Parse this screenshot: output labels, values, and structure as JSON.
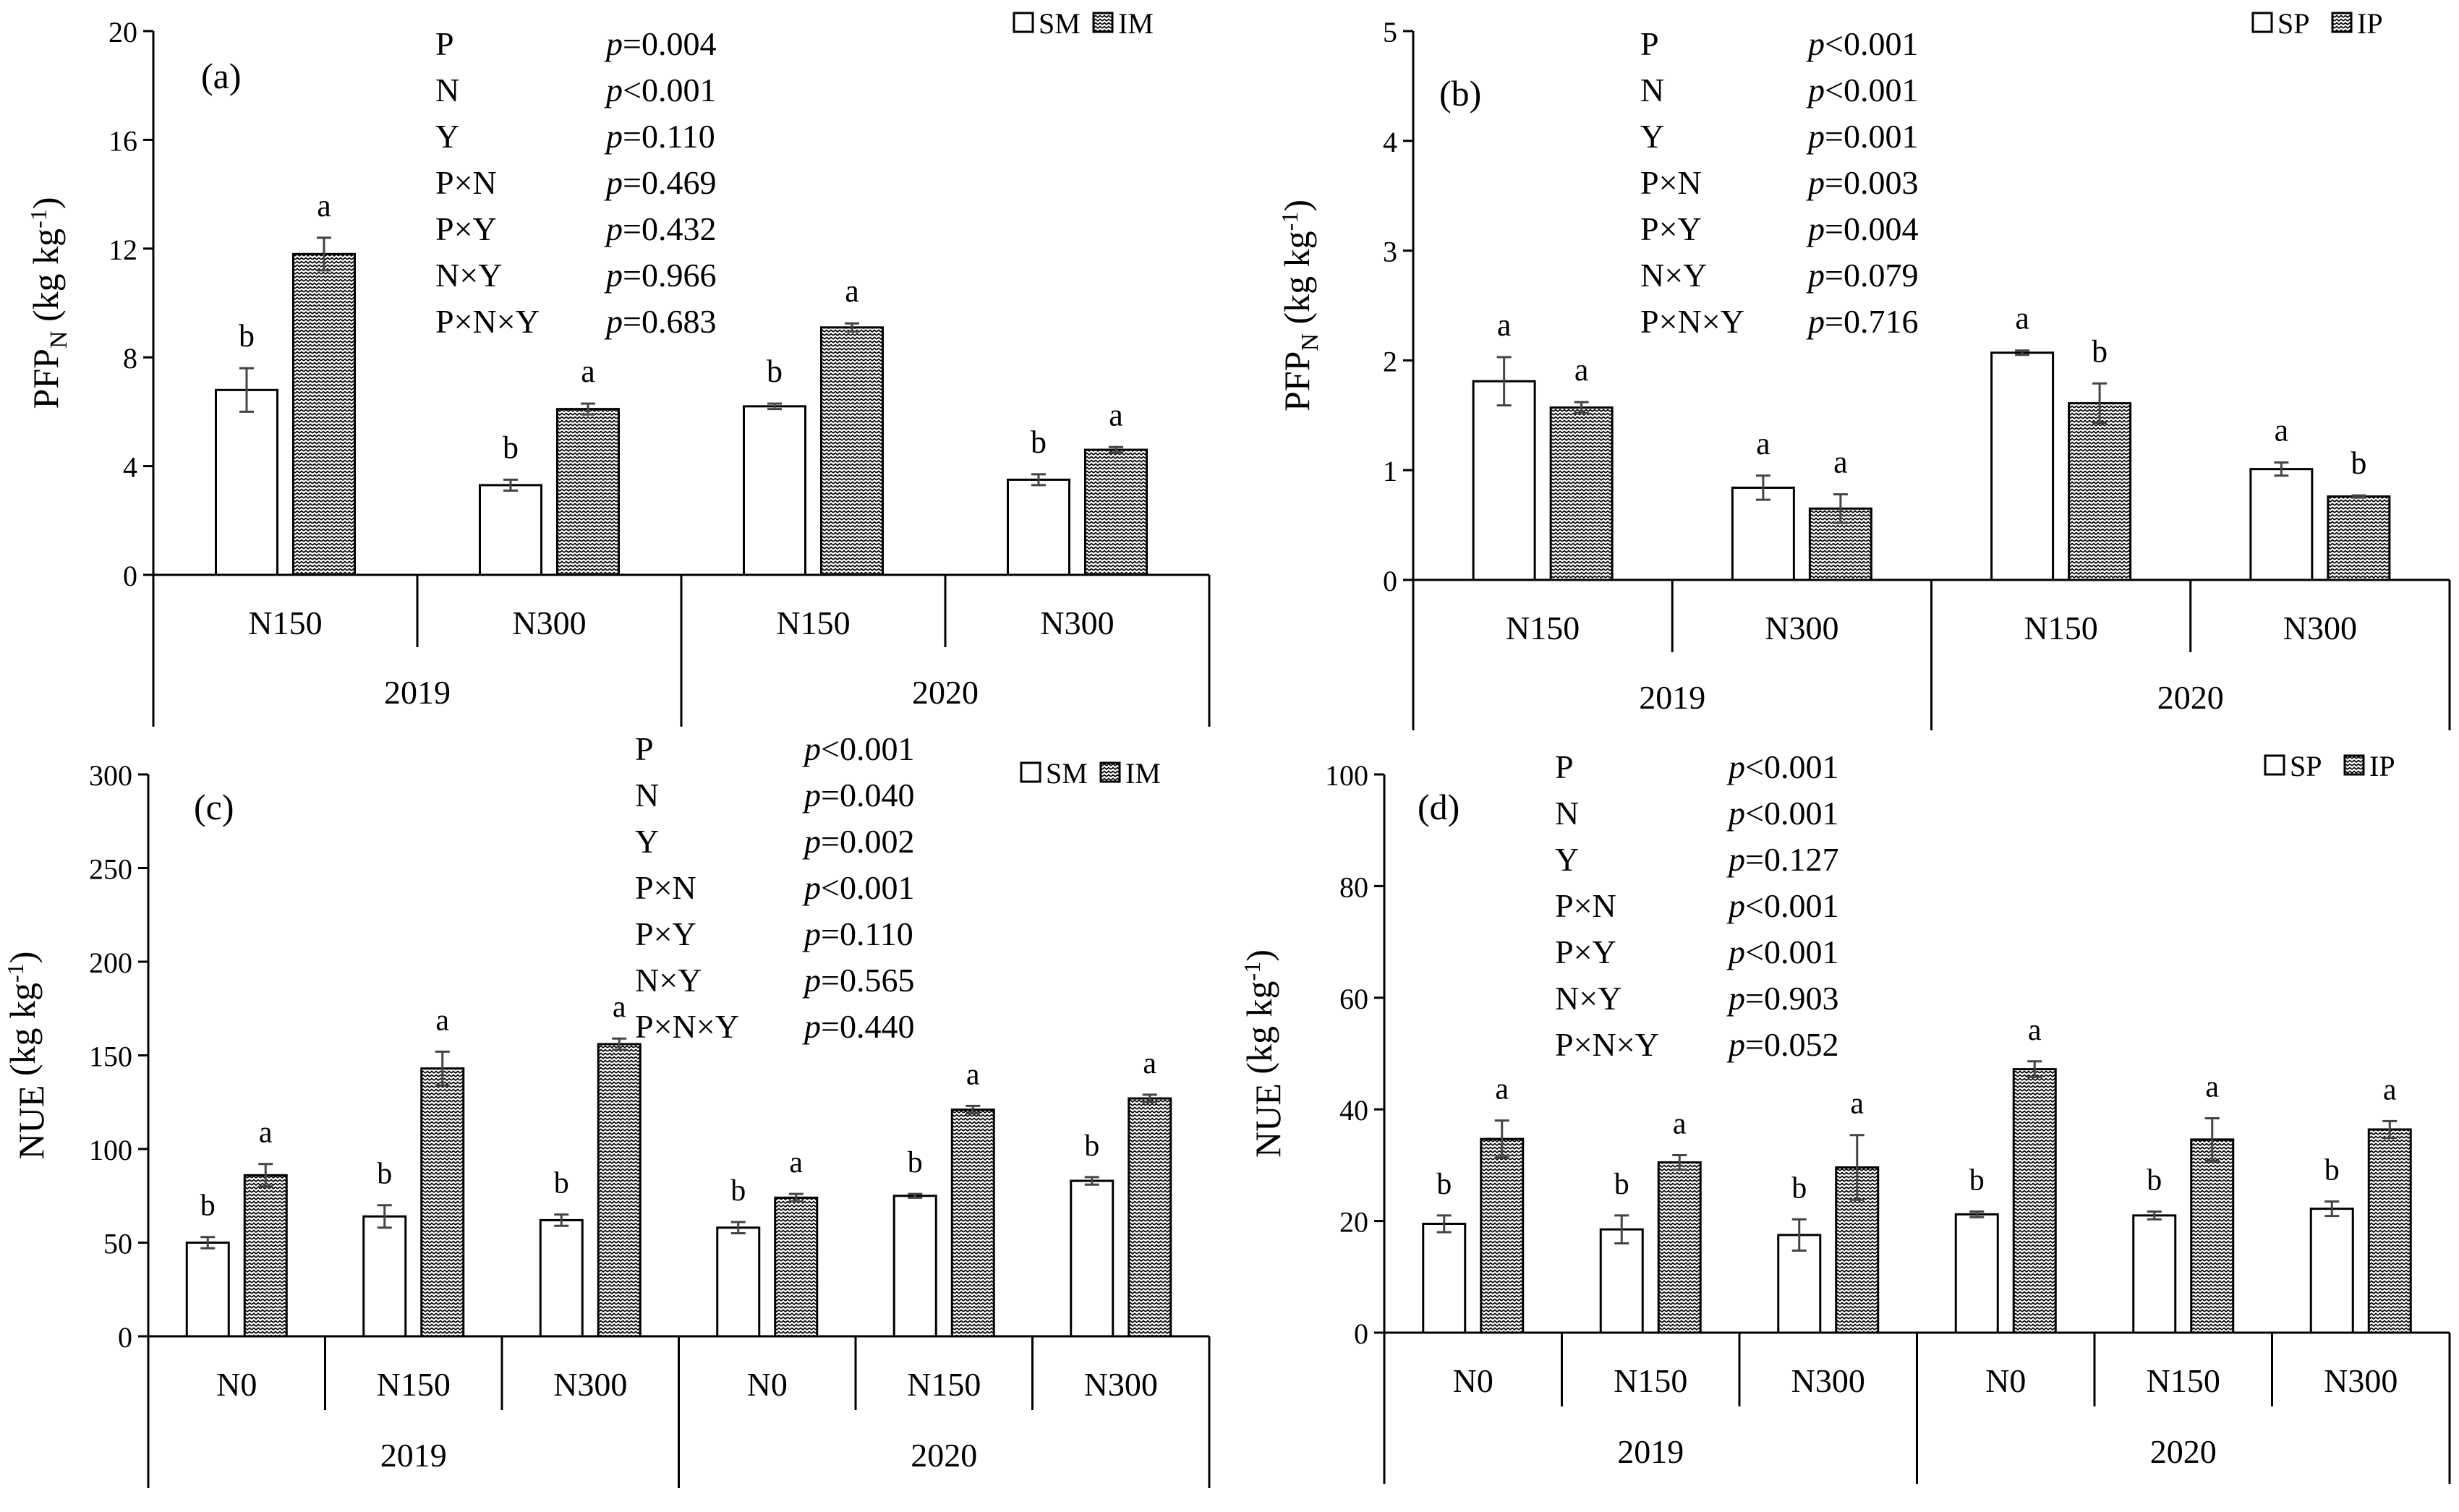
{
  "figure": {
    "description_panels": [
      "(a)",
      "(b)",
      "(c)",
      "(d)"
    ]
  },
  "chart_data": [
    {
      "type": "bar",
      "panel_label": "(a)",
      "ylabel": "PFP",
      "ylabel_sub": "N",
      "ylabel_unit": " (kg kg",
      "ylabel_sup": "-1",
      "ylabel_close": ")",
      "ylim": [
        0,
        20
      ],
      "yticks": [
        0,
        4,
        8,
        12,
        16,
        20
      ],
      "groups": [
        "2019",
        "2020"
      ],
      "categories": [
        "N150",
        "N300",
        "N150",
        "N300"
      ],
      "legend": [
        "SM",
        "IM"
      ],
      "series": [
        {
          "name": "SM",
          "values": [
            6.8,
            3.3,
            6.2,
            3.5
          ],
          "errors": [
            0.8,
            0.2,
            0.1,
            0.2
          ],
          "letters": [
            "b",
            "b",
            "b",
            "b"
          ]
        },
        {
          "name": "IM",
          "values": [
            11.8,
            6.1,
            9.1,
            4.6
          ],
          "errors": [
            0.6,
            0.2,
            0.15,
            0.1
          ],
          "letters": [
            "a",
            "a",
            "a",
            "a"
          ]
        }
      ],
      "stats": [
        {
          "factor": "P",
          "p": "=0.004"
        },
        {
          "factor": "N",
          "p": "<0.001"
        },
        {
          "factor": "Y",
          "p": "=0.110"
        },
        {
          "factor": "P×N",
          "p": "=0.469"
        },
        {
          "factor": "P×Y",
          "p": "=0.432"
        },
        {
          "factor": "N×Y",
          "p": "=0.966"
        },
        {
          "factor": "P×N×Y",
          "p": "=0.683"
        }
      ],
      "p_symbol": "p"
    },
    {
      "type": "bar",
      "panel_label": "(b)",
      "ylabel": "PFP",
      "ylabel_sub": "N",
      "ylabel_unit": " (kg kg",
      "ylabel_sup": "-1",
      "ylabel_close": ")",
      "ylim": [
        0,
        5
      ],
      "yticks": [
        0,
        1,
        2,
        3,
        4,
        5
      ],
      "groups": [
        "2019",
        "2020"
      ],
      "categories": [
        "N150",
        "N300",
        "N150",
        "N300"
      ],
      "legend": [
        "SP",
        "IP"
      ],
      "series": [
        {
          "name": "SP",
          "values": [
            1.81,
            0.84,
            2.07,
            1.01
          ],
          "errors": [
            0.22,
            0.11,
            0.02,
            0.06
          ],
          "letters": [
            "a",
            "a",
            "a",
            "a"
          ]
        },
        {
          "name": "IP",
          "values": [
            1.57,
            0.65,
            1.61,
            0.76
          ],
          "errors": [
            0.05,
            0.13,
            0.18,
            0.01
          ],
          "letters": [
            "a",
            "a",
            "b",
            "b"
          ]
        }
      ],
      "stats": [
        {
          "factor": "P",
          "p": "<0.001"
        },
        {
          "factor": "N",
          "p": "<0.001"
        },
        {
          "factor": "Y",
          "p": "=0.001"
        },
        {
          "factor": "P×N",
          "p": "=0.003"
        },
        {
          "factor": "P×Y",
          "p": "=0.004"
        },
        {
          "factor": "N×Y",
          "p": "=0.079"
        },
        {
          "factor": "P×N×Y",
          "p": "=0.716"
        }
      ],
      "p_symbol": "p"
    },
    {
      "type": "bar",
      "panel_label": "(c)",
      "ylabel": "NUE",
      "ylabel_sub": "",
      "ylabel_unit": " (kg kg",
      "ylabel_sup": "-1",
      "ylabel_close": ")",
      "ylim": [
        0,
        300
      ],
      "yticks": [
        0,
        50,
        100,
        150,
        200,
        250,
        300
      ],
      "groups": [
        "2019",
        "2020"
      ],
      "categories": [
        "N0",
        "N150",
        "N300",
        "N0",
        "N150",
        "N300"
      ],
      "legend": [
        "SM",
        "IM"
      ],
      "series": [
        {
          "name": "SM",
          "values": [
            50,
            64,
            62,
            58,
            75,
            83
          ],
          "errors": [
            3,
            6,
            3,
            3,
            1,
            2
          ],
          "letters": [
            "b",
            "b",
            "b",
            "b",
            "b",
            "b"
          ]
        },
        {
          "name": "IM",
          "values": [
            86,
            143,
            156,
            74,
            121,
            127
          ],
          "errors": [
            6,
            9,
            3,
            2,
            2,
            2
          ],
          "letters": [
            "a",
            "a",
            "a",
            "a",
            "a",
            "a"
          ]
        }
      ],
      "stats": [
        {
          "factor": "P",
          "p": "<0.001"
        },
        {
          "factor": "N",
          "p": "=0.040"
        },
        {
          "factor": "Y",
          "p": "=0.002"
        },
        {
          "factor": "P×N",
          "p": "<0.001"
        },
        {
          "factor": "P×Y",
          "p": "=0.110"
        },
        {
          "factor": "N×Y",
          "p": "=0.565"
        },
        {
          "factor": "P×N×Y",
          "p": "=0.440"
        }
      ],
      "p_symbol": "p"
    },
    {
      "type": "bar",
      "panel_label": "(d)",
      "ylabel": "NUE",
      "ylabel_sub": "",
      "ylabel_unit": " (kg kg",
      "ylabel_sup": "-1",
      "ylabel_close": ")",
      "ylim": [
        0,
        100
      ],
      "yticks": [
        0,
        20,
        40,
        60,
        80,
        100
      ],
      "groups": [
        "2019",
        "2020"
      ],
      "categories": [
        "N0",
        "N150",
        "N300",
        "N0",
        "N150",
        "N300"
      ],
      "legend": [
        "SP",
        "IP"
      ],
      "series": [
        {
          "name": "SP",
          "values": [
            19.5,
            18.5,
            17.5,
            21.2,
            21.0,
            22.2
          ],
          "errors": [
            1.5,
            2.5,
            2.8,
            0.5,
            0.7,
            1.3
          ],
          "letters": [
            "b",
            "b",
            "b",
            "b",
            "b",
            "b"
          ]
        },
        {
          "name": "IP",
          "values": [
            34.7,
            30.5,
            29.6,
            47.2,
            34.6,
            36.4
          ],
          "errors": [
            3.3,
            1.3,
            5.8,
            1.4,
            3.8,
            1.5
          ],
          "letters": [
            "a",
            "a",
            "a",
            "a",
            "a",
            "a"
          ]
        }
      ],
      "stats": [
        {
          "factor": "P",
          "p": "<0.001"
        },
        {
          "factor": "N",
          "p": "<0.001"
        },
        {
          "factor": "Y",
          "p": "=0.127"
        },
        {
          "factor": "P×N",
          "p": "<0.001"
        },
        {
          "factor": "P×Y",
          "p": "<0.001"
        },
        {
          "factor": "N×Y",
          "p": "=0.903"
        },
        {
          "factor": "P×N×Y",
          "p": "=0.052"
        }
      ],
      "p_symbol": "p"
    }
  ]
}
